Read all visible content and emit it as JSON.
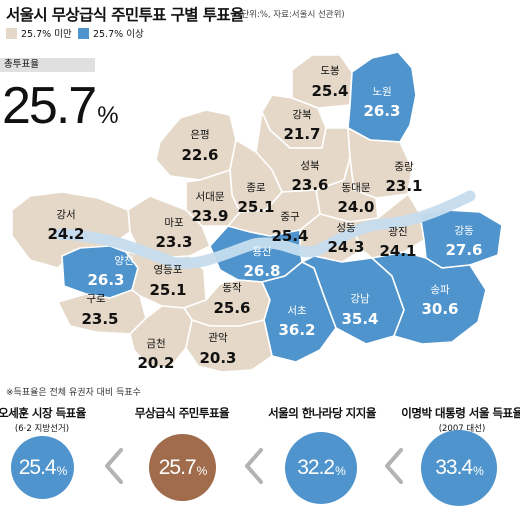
{
  "header": {
    "title": "서울시 무상급식 주민투표 구별 투표율",
    "note": "(단위:%, 자료:서울시 선관위)"
  },
  "legend": [
    {
      "label": "25.7% 미만",
      "color": "#e5d8c8"
    },
    {
      "label": "25.7% 이상",
      "color": "#4f94cc"
    }
  ],
  "total": {
    "label": "총투표율",
    "value": "25.7",
    "unit": "%"
  },
  "colors": {
    "low": "#e5d8c8",
    "high": "#4f94cc",
    "river": "#c5dcee",
    "brown": "#a06c4c"
  },
  "districts": [
    {
      "id": "dobong",
      "name": "도봉",
      "value": "25.4"
    },
    {
      "id": "nowon",
      "name": "노원",
      "value": "26.3"
    },
    {
      "id": "gangbuk",
      "name": "강북",
      "value": "21.7"
    },
    {
      "id": "eunpyeong",
      "name": "은평",
      "value": "22.6"
    },
    {
      "id": "seongbuk",
      "name": "성북",
      "value": "23.6"
    },
    {
      "id": "jungnang",
      "name": "중랑",
      "value": "23.1"
    },
    {
      "id": "jongno",
      "name": "종로",
      "value": "25.1"
    },
    {
      "id": "seodaemun",
      "name": "서대문",
      "value": "23.9"
    },
    {
      "id": "dongdaemun",
      "name": "동대문",
      "value": "24.0"
    },
    {
      "id": "mapo",
      "name": "마포",
      "value": "23.3"
    },
    {
      "id": "jung",
      "name": "중구",
      "value": "25.4"
    },
    {
      "id": "seongdong",
      "name": "성동",
      "value": "24.3"
    },
    {
      "id": "gwangjin",
      "name": "광진",
      "value": "24.1"
    },
    {
      "id": "gangseo",
      "name": "강서",
      "value": "24.2"
    },
    {
      "id": "yangcheon",
      "name": "양천",
      "value": "26.3"
    },
    {
      "id": "yongsan",
      "name": "용산",
      "value": "26.8"
    },
    {
      "id": "gangdong",
      "name": "강동",
      "value": "27.6"
    },
    {
      "id": "yeongdeungpo",
      "name": "영등포",
      "value": "25.1"
    },
    {
      "id": "guro",
      "name": "구로",
      "value": "23.5"
    },
    {
      "id": "dongjak",
      "name": "동작",
      "value": "25.6"
    },
    {
      "id": "seocho",
      "name": "서초",
      "value": "36.2"
    },
    {
      "id": "gangnam",
      "name": "강남",
      "value": "35.4"
    },
    {
      "id": "songpa",
      "name": "송파",
      "value": "30.6"
    },
    {
      "id": "geumcheon",
      "name": "금천",
      "value": "20.2"
    },
    {
      "id": "gwanak",
      "name": "관악",
      "value": "20.3"
    }
  ],
  "footnote": "※득표율은 전체 유권자 대비 득표수",
  "comparison": [
    {
      "title": "오세훈 시장 득표율",
      "sub": "(6·2 지방선거)",
      "value": "25.4",
      "unit": "%",
      "color": "#4f94cc"
    },
    {
      "title": "무상급식 주민투표율",
      "sub": "",
      "value": "25.7",
      "unit": "%",
      "color": "#a06c4c"
    },
    {
      "title": "서울의 한나라당 지지율",
      "sub": "",
      "value": "32.2",
      "unit": "%",
      "color": "#4f94cc"
    },
    {
      "title": "이명박 대통령 서울 득표율",
      "sub": "(2007 대선)",
      "value": "33.4",
      "unit": "%",
      "color": "#4f94cc"
    }
  ]
}
